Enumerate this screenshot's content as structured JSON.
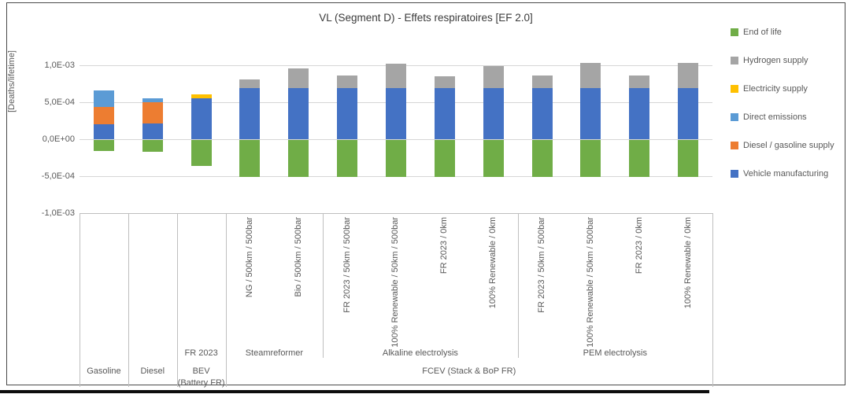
{
  "chart_data": {
    "type": "bar",
    "stacked": true,
    "title": "VL (Segment D) - Effets respiratoires [EF 2.0]",
    "ylabel": "[Deaths/lifetime]",
    "xlabel": "",
    "grid": true,
    "ylim": [
      -0.001,
      0.00115
    ],
    "y_ticks": [
      {
        "label": "1,0E-03",
        "value": 0.001
      },
      {
        "label": "5,0E-04",
        "value": 0.0005
      },
      {
        "label": "0,0E+00",
        "value": 0
      },
      {
        "label": "-5,0E-04",
        "value": -0.0005
      },
      {
        "label": "-1,0E-03",
        "value": -0.001
      }
    ],
    "categories": [
      "Gasoline",
      "Diesel",
      "BEV (Battery FR)",
      "NG / 500km / 500bar",
      "Bio / 500km / 500bar",
      "FR 2023 / 50km / 500bar",
      "100% Renewable / 50km / 500bar",
      "FR 2023 / 0km",
      "100% Renewable / 0km",
      "FR 2023 / 50km / 500bar",
      "100% Renewable / 50km / 500bar",
      "FR 2023 / 0km",
      "100% Renewable / 0km"
    ],
    "rotated_labels": [
      "",
      "",
      "",
      "NG / 500km / 500bar",
      "Bio / 500km / 500bar",
      "FR 2023 / 50km / 500bar",
      "100% Renewable / 50km / 500bar",
      "FR 2023 / 0km",
      "100% Renewable / 0km",
      "FR 2023 / 50km / 500bar",
      "100% Renewable / 50km / 500bar",
      "FR 2023 / 0km",
      "100% Renewable / 0km"
    ],
    "axis_level2": [
      {
        "label": "FR 2023",
        "from": 2,
        "to": 3
      },
      {
        "label": "Steamreformer",
        "from": 3,
        "to": 5
      },
      {
        "label": "Alkaline electrolysis",
        "from": 5,
        "to": 9
      },
      {
        "label": "PEM electrolysis",
        "from": 9,
        "to": 13
      }
    ],
    "axis_level3": [
      {
        "label": "Gasoline",
        "from": 0,
        "to": 1
      },
      {
        "label": "Diesel",
        "from": 1,
        "to": 2
      },
      {
        "label": "BEV (Battery FR)",
        "from": 2,
        "to": 3
      },
      {
        "label": "FCEV (Stack & BoP FR)",
        "from": 3,
        "to": 13
      }
    ],
    "series": [
      {
        "name": "End of life",
        "color": "#70AD47",
        "values": [
          -0.00015,
          -0.00016,
          -0.00036,
          -0.0005,
          -0.0005,
          -0.0005,
          -0.0005,
          -0.0005,
          -0.0005,
          -0.0005,
          -0.0005,
          -0.0005,
          -0.0005
        ]
      },
      {
        "name": "Vehicle manufacturing",
        "color": "#4472C4",
        "values": [
          0.00021,
          0.00022,
          0.00056,
          0.0007,
          0.0007,
          0.0007,
          0.0007,
          0.0007,
          0.0007,
          0.0007,
          0.0007,
          0.0007,
          0.0007
        ]
      },
      {
        "name": "Diesel / gasoline supply",
        "color": "#ED7D31",
        "values": [
          0.00023,
          0.00028,
          0,
          0,
          0,
          0,
          0,
          0,
          0,
          0,
          0,
          0,
          0
        ]
      },
      {
        "name": "Direct emissions",
        "color": "#5B9BD5",
        "values": [
          0.00022,
          6e-05,
          0,
          0,
          0,
          0,
          0,
          0,
          0,
          0,
          0,
          0,
          0
        ]
      },
      {
        "name": "Electricity supply",
        "color": "#FFC000",
        "values": [
          0,
          0,
          5e-05,
          0,
          0,
          0,
          0,
          0,
          0,
          0,
          0,
          0,
          0
        ]
      },
      {
        "name": "Hydrogen supply",
        "color": "#A5A5A5",
        "values": [
          0,
          0,
          0,
          0.00011,
          0.00026,
          0.00016,
          0.00032,
          0.00015,
          0.00029,
          0.00017,
          0.00034,
          0.00016,
          0.00033
        ]
      }
    ],
    "legend": {
      "position": "right",
      "items": [
        {
          "label": "End of life",
          "color": "#70AD47"
        },
        {
          "label": "Hydrogen supply",
          "color": "#A5A5A5"
        },
        {
          "label": "Electricity supply",
          "color": "#FFC000"
        },
        {
          "label": "Direct emissions",
          "color": "#5B9BD5"
        },
        {
          "label": "Diesel / gasoline supply",
          "color": "#ED7D31"
        },
        {
          "label": "Vehicle manufacturing",
          "color": "#4472C4"
        }
      ]
    }
  }
}
